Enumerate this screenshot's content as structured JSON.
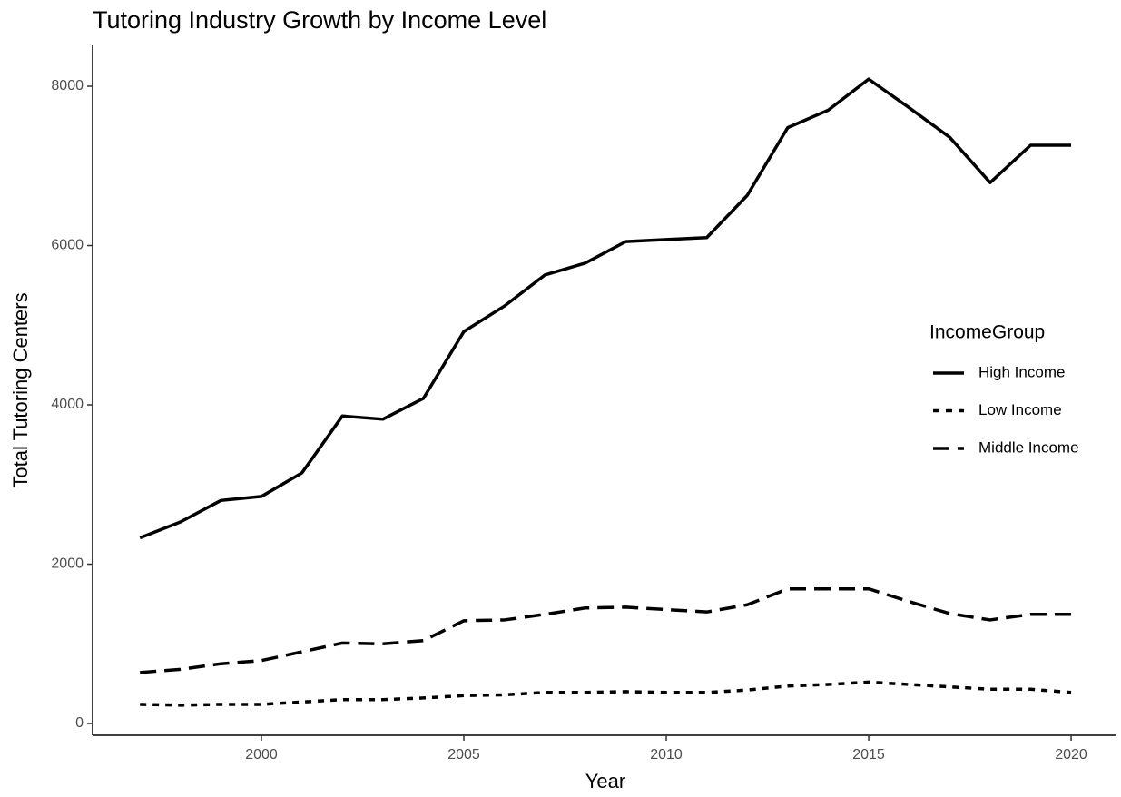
{
  "chart_data": {
    "type": "line",
    "title": "Tutoring Industry Growth by Income Level",
    "x_label": "Year",
    "y_label": "Total Tutoring Centers",
    "legend_title": "IncomeGroup",
    "legend_position": "right",
    "x": [
      1997,
      1998,
      1999,
      2000,
      2001,
      2002,
      2003,
      2004,
      2005,
      2006,
      2007,
      2008,
      2009,
      2010,
      2011,
      2012,
      2013,
      2014,
      2015,
      2016,
      2017,
      2018,
      2019,
      2020
    ],
    "series": [
      {
        "name": "High Income",
        "color": "#000000",
        "dash": "solid",
        "values": [
          2330,
          2530,
          2800,
          2850,
          3145,
          3860,
          3820,
          4080,
          4920,
          5240,
          5630,
          5780,
          6050,
          6075,
          6100,
          6630,
          7480,
          7700,
          8090,
          7730,
          7360,
          6790,
          7260,
          7260
        ]
      },
      {
        "name": "Low Income",
        "color": "#000000",
        "dash": "dotted",
        "values": [
          240,
          230,
          240,
          240,
          270,
          300,
          300,
          320,
          350,
          360,
          390,
          390,
          400,
          390,
          390,
          420,
          470,
          490,
          520,
          490,
          460,
          430,
          430,
          390
        ]
      },
      {
        "name": "Middle Income",
        "color": "#000000",
        "dash": "dashed",
        "values": [
          640,
          680,
          750,
          790,
          900,
          1010,
          1000,
          1040,
          1290,
          1300,
          1370,
          1450,
          1460,
          1430,
          1400,
          1490,
          1690,
          1690,
          1690,
          1530,
          1380,
          1300,
          1370,
          1370
        ]
      }
    ],
    "xlim": [
      1995.83,
      2021.12
    ],
    "xticks": [
      2000,
      2005,
      2010,
      2015,
      2020
    ],
    "ylim": [
      -148,
      8513
    ],
    "yticks": [
      0,
      2000,
      4000,
      6000,
      8000
    ],
    "grid": false
  }
}
